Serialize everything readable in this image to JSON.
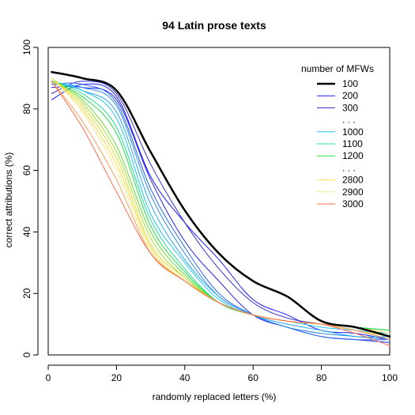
{
  "chart_data": {
    "type": "line",
    "title": "94 Latin prose texts",
    "xlabel": "randomly replaced letters (%)",
    "ylabel": "correct attributions (%)",
    "xlim": [
      0,
      100
    ],
    "ylim": [
      0,
      100
    ],
    "xticks": [
      "0",
      "20",
      "40",
      "60",
      "80",
      "100"
    ],
    "yticks": [
      "0",
      "20",
      "40",
      "60",
      "80",
      "100"
    ],
    "grid": false,
    "legend": {
      "title": "number of MFWs",
      "placement": "top-right",
      "entries": [
        {
          "label": "100",
          "color": "#000000",
          "width": 2.5
        },
        {
          "label": "200",
          "color": "#1a1aff",
          "width": 1
        },
        {
          "label": "300",
          "color": "#3030c8",
          "width": 1
        },
        {
          "label": ". . .",
          "color": null
        },
        {
          "label": "1000",
          "color": "#22c8ee",
          "width": 1
        },
        {
          "label": "1100",
          "color": "#22dd99",
          "width": 1
        },
        {
          "label": "1200",
          "color": "#22dd44",
          "width": 1
        },
        {
          "label": ". . .",
          "color": null
        },
        {
          "label": "2800",
          "color": "#f4dd4a",
          "width": 1
        },
        {
          "label": "2900",
          "color": "#f8e68a",
          "width": 1
        },
        {
          "label": "3000",
          "color": "#ff6a4a",
          "width": 1
        }
      ]
    },
    "x": [
      1,
      10,
      20,
      30,
      40,
      50,
      60,
      70,
      80,
      90,
      100
    ],
    "series": [
      {
        "name": "100",
        "color": "#000000",
        "width": 2.5,
        "values": [
          92,
          90,
          86,
          66,
          47,
          33,
          24,
          19,
          11,
          9,
          6
        ]
      },
      {
        "name": "200",
        "color": "#1a1aff",
        "width": 1,
        "values": [
          83,
          88,
          84,
          58,
          43,
          31,
          18,
          13,
          8,
          7,
          5
        ]
      },
      {
        "name": "300",
        "color": "#3030c8",
        "width": 1,
        "values": [
          85,
          89,
          85,
          62,
          43,
          28,
          17,
          12,
          10,
          8,
          5
        ]
      },
      {
        "color": "#2222ee",
        "width": 1,
        "values": [
          87,
          87,
          83,
          57,
          37,
          24,
          13,
          9,
          6,
          5,
          4
        ]
      },
      {
        "color": "#2a66ee",
        "width": 1,
        "values": [
          88,
          88,
          82,
          54,
          35,
          20,
          13,
          9,
          6,
          5,
          5
        ]
      },
      {
        "color": "#2a88ee",
        "width": 1,
        "values": [
          88,
          87,
          81,
          52,
          33,
          19,
          13,
          9,
          7,
          6,
          5
        ]
      },
      {
        "color": "#22a8ee",
        "width": 1,
        "values": [
          89,
          86,
          79,
          49,
          31,
          19,
          13,
          10,
          8,
          6,
          6
        ]
      },
      {
        "name": "1000",
        "color": "#22c8ee",
        "width": 1,
        "values": [
          89,
          86,
          77,
          46,
          30,
          18,
          13,
          11,
          9,
          8,
          7
        ]
      },
      {
        "name": "1100",
        "color": "#22dd99",
        "width": 1,
        "values": [
          89,
          85,
          74,
          44,
          28,
          17,
          13,
          11,
          10,
          9,
          8
        ]
      },
      {
        "name": "1200",
        "color": "#22dd44",
        "width": 1,
        "values": [
          89,
          84,
          72,
          42,
          27,
          17,
          13,
          11,
          10,
          9,
          8
        ]
      },
      {
        "color": "#66e030",
        "width": 1,
        "values": [
          89,
          83,
          68,
          40,
          26,
          17,
          13,
          11,
          10,
          9,
          7
        ]
      },
      {
        "color": "#a8e030",
        "width": 1,
        "values": [
          90,
          82,
          66,
          38,
          25,
          17,
          13,
          11,
          10,
          9,
          7
        ]
      },
      {
        "color": "#dddd33",
        "width": 1,
        "values": [
          90,
          81,
          64,
          36,
          25,
          17,
          13,
          11,
          10,
          9,
          7
        ]
      },
      {
        "name": "2800",
        "color": "#f4dd4a",
        "width": 1,
        "values": [
          90,
          80,
          62,
          35,
          24,
          17,
          13,
          11,
          10,
          8,
          6
        ]
      },
      {
        "name": "2900",
        "color": "#f8e68a",
        "width": 1,
        "values": [
          90,
          79,
          60,
          34,
          24,
          17,
          13,
          11,
          10,
          9,
          7
        ]
      },
      {
        "color": "#f8a050",
        "width": 1,
        "values": [
          89,
          76,
          57,
          33,
          24,
          17,
          13,
          11,
          10,
          8,
          5
        ]
      },
      {
        "name": "3000",
        "color": "#ff6a4a",
        "width": 1,
        "values": [
          89,
          74,
          53,
          33,
          24,
          17,
          13,
          11,
          10,
          7,
          3
        ]
      }
    ]
  }
}
